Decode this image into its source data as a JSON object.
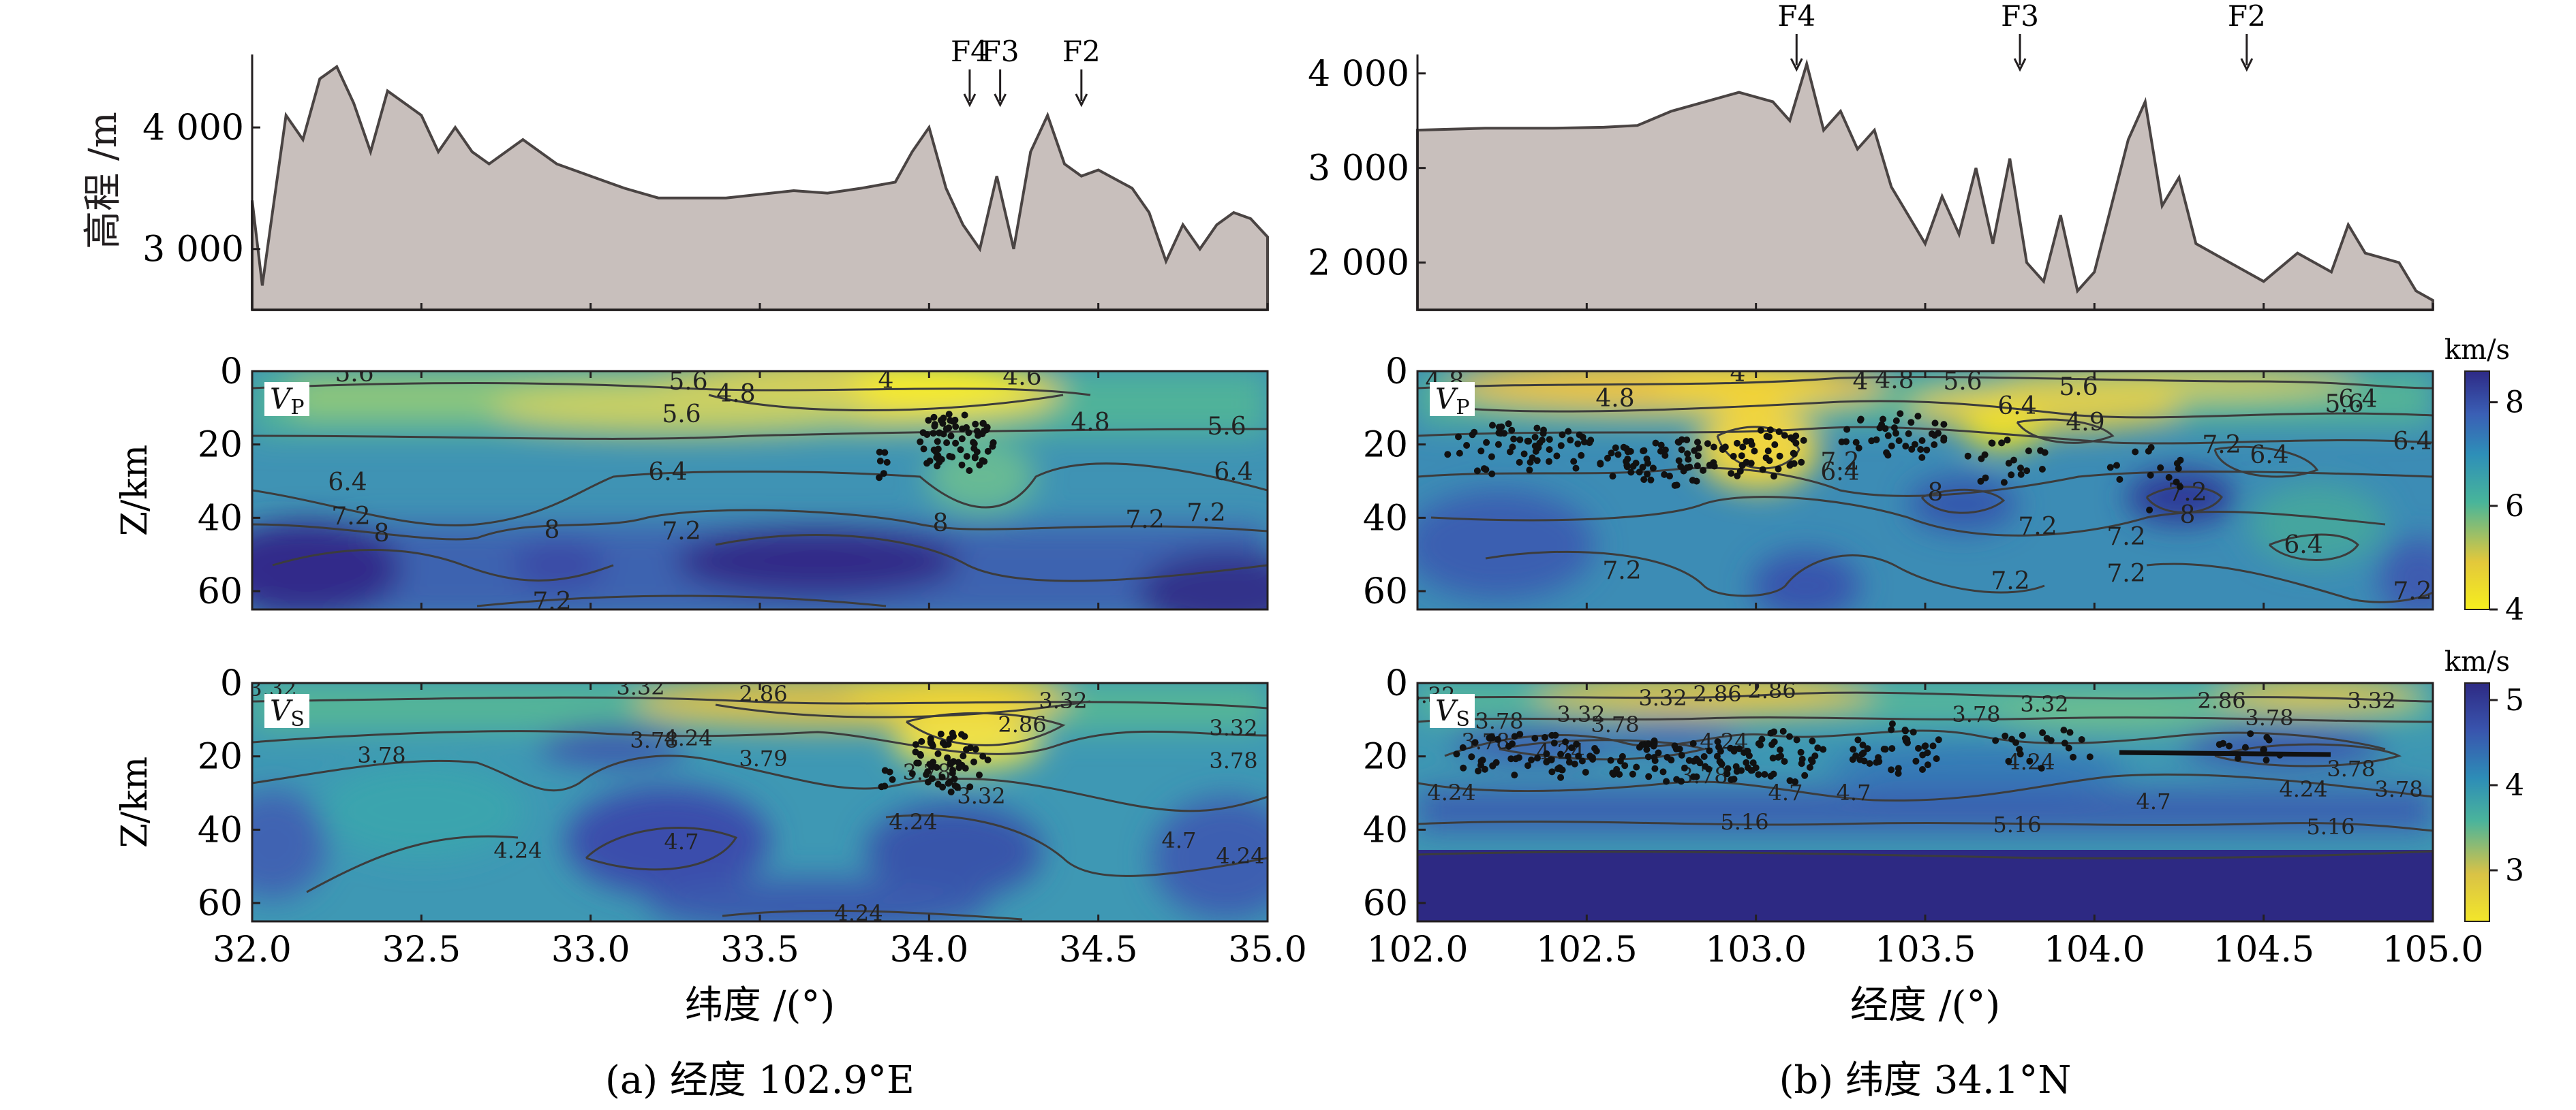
{
  "figure": {
    "colors": {
      "terrain_fill": "#c8bfbc",
      "terrain_line": "#4a4443",
      "contour_line": "#3c3c3c",
      "event_dot": "#111111",
      "vp_colormap": [
        "#f6ee1e",
        "#e3c83b",
        "#48b59a",
        "#2e8fb8",
        "#3a5fb5",
        "#2e2a86"
      ],
      "vs_colormap": [
        "#f3e62a",
        "#d9c246",
        "#4bb49b",
        "#2d8db7",
        "#3955ae",
        "#2e2a84"
      ]
    },
    "panels": [
      {
        "id": "a",
        "caption": "(a) 经度 102.9°E",
        "xlabel": "纬度 /(°)",
        "xlim": [
          32.0,
          35.0
        ],
        "xticks": [
          32.0,
          32.5,
          33.0,
          33.5,
          34.0,
          34.5,
          35.0
        ],
        "xtick_labels": [
          "32.0",
          "32.5",
          "33.0",
          "33.5",
          "34.0",
          "34.5",
          "35.0"
        ],
        "elevation": {
          "ylabel": "高程 /m",
          "ylim": [
            2500,
            4600
          ],
          "yticks": [
            3000,
            4000
          ],
          "ytick_labels": [
            "3 000",
            "4 000"
          ],
          "x": [
            32.0,
            32.03,
            32.06,
            32.1,
            32.15,
            32.2,
            32.25,
            32.3,
            32.35,
            32.4,
            32.45,
            32.5,
            32.55,
            32.6,
            32.65,
            32.7,
            32.8,
            32.9,
            33.0,
            33.1,
            33.2,
            33.3,
            33.4,
            33.5,
            33.6,
            33.7,
            33.8,
            33.9,
            33.95,
            34.0,
            34.05,
            34.1,
            34.15,
            34.2,
            34.25,
            34.3,
            34.35,
            34.4,
            34.45,
            34.5,
            34.6,
            34.65,
            34.7,
            34.75,
            34.8,
            34.85,
            34.9,
            34.95,
            35.0
          ],
          "y": [
            3400,
            2700,
            3300,
            4100,
            3900,
            4400,
            4500,
            4200,
            3800,
            4300,
            4200,
            4100,
            3800,
            4000,
            3800,
            3700,
            3900,
            3700,
            3600,
            3500,
            3420,
            3420,
            3420,
            3450,
            3480,
            3460,
            3500,
            3550,
            3800,
            4000,
            3500,
            3200,
            3000,
            3600,
            3000,
            3800,
            4100,
            3700,
            3600,
            3650,
            3500,
            3300,
            2900,
            3200,
            3000,
            3200,
            3300,
            3250,
            3100
          ],
          "faults": [
            {
              "label": "F4",
              "x": 34.12
            },
            {
              "label": "F3",
              "x": 34.21
            },
            {
              "label": "F2",
              "x": 34.45
            }
          ]
        },
        "vp": {
          "label": "V",
          "label_sub": "P",
          "ylabel": "Z/km",
          "ylim": [
            0,
            65
          ],
          "yticks": [
            0,
            20,
            40,
            60
          ],
          "ytick_labels": [
            "0",
            "20",
            "40",
            "60"
          ],
          "contour_labels": [
            "5.6",
            "5.6",
            "4.8",
            "4",
            "4.6",
            "5.6",
            "4.8",
            "5.6",
            "6.4",
            "7.2",
            "6.4",
            "7.2",
            "8",
            "8",
            "7.2",
            "6.4",
            "7.2",
            "8",
            "7.2"
          ]
        },
        "vs": {
          "label": "V",
          "label_sub": "S",
          "ylabel": "Z/km",
          "ylim": [
            0,
            65
          ],
          "yticks": [
            0,
            20,
            40,
            60
          ],
          "ytick_labels": [
            "0",
            "20",
            "40",
            "60"
          ],
          "contour_labels": [
            "3.32",
            "3.32",
            "2.86",
            "3.78",
            "3.78",
            "3.79",
            "2.86",
            "3.32",
            "3.32",
            "3.78",
            "4.24",
            "4.7",
            "4.24",
            "3.78",
            "3.32",
            "4.24",
            "4.7",
            "4.24",
            "4.24"
          ]
        }
      },
      {
        "id": "b",
        "caption": "(b) 纬度 34.1°N",
        "xlabel": "经度 /(°)",
        "xlim": [
          102.0,
          105.0
        ],
        "xticks": [
          102.0,
          102.5,
          103.0,
          103.5,
          104.0,
          104.5,
          105.0
        ],
        "xtick_labels": [
          "102.0",
          "102.5",
          "103.0",
          "103.5",
          "104.0",
          "104.5",
          "105.0"
        ],
        "elevation": {
          "ylabel": "",
          "ylim": [
            1500,
            4200
          ],
          "yticks": [
            2000,
            3000,
            4000
          ],
          "ytick_labels": [
            "2 000",
            "3 000",
            "4 000"
          ],
          "x": [
            102.0,
            102.2,
            102.4,
            102.55,
            102.65,
            102.75,
            102.85,
            102.95,
            103.05,
            103.1,
            103.15,
            103.2,
            103.25,
            103.3,
            103.35,
            103.4,
            103.45,
            103.5,
            103.55,
            103.6,
            103.65,
            103.7,
            103.75,
            103.8,
            103.85,
            103.9,
            103.95,
            104.0,
            104.05,
            104.1,
            104.15,
            104.2,
            104.25,
            104.3,
            104.4,
            104.5,
            104.6,
            104.7,
            104.75,
            104.8,
            104.9,
            104.95,
            105.0
          ],
          "y": [
            3400,
            3420,
            3420,
            3430,
            3450,
            3600,
            3700,
            3800,
            3700,
            3500,
            4100,
            3400,
            3600,
            3200,
            3400,
            2800,
            2500,
            2200,
            2700,
            2300,
            3000,
            2200,
            3100,
            2000,
            1800,
            2500,
            1700,
            1900,
            2600,
            3300,
            3700,
            2600,
            2900,
            2200,
            2000,
            1800,
            2100,
            1900,
            2400,
            2100,
            2000,
            1700,
            1600
          ],
          "faults": [
            {
              "label": "F4",
              "x": 103.12
            },
            {
              "label": "F3",
              "x": 103.78
            },
            {
              "label": "F2",
              "x": 104.45
            }
          ]
        },
        "vp": {
          "label": "V",
          "label_sub": "P",
          "ylabel": "",
          "ylim": [
            0,
            65
          ],
          "yticks": [
            0,
            20,
            40,
            60
          ],
          "ytick_labels": [
            "0",
            "20",
            "40",
            "60"
          ],
          "contour_labels": [
            "4.8",
            "4",
            "4",
            "4.8",
            "5.6",
            "4.8",
            "5.6",
            "6.4",
            "4.9",
            "6.4",
            "6.4",
            "7.2",
            "6.4",
            "7.2",
            "8",
            "7.2",
            "7.2",
            "7.2",
            "8",
            "7.2",
            "5.6",
            "7.2",
            "6.4",
            "7.2",
            "6.4",
            "7.2"
          ],
          "colorbar": {
            "unit": "km/s",
            "ticks": [
              4,
              6,
              8
            ],
            "tick_labels": [
              "4",
              "6",
              "8"
            ],
            "range": [
              4,
              8.6
            ]
          }
        },
        "vs": {
          "label": "V",
          "label_sub": "S",
          "ylabel": "",
          "ylim": [
            0,
            65
          ],
          "yticks": [
            0,
            20,
            40,
            60
          ],
          "ytick_labels": [
            "0",
            "20",
            "40",
            "60"
          ],
          "contour_labels": [
            "3.32",
            "3.32",
            "2.86",
            "2.86",
            "3.78",
            "3.32",
            "3.78",
            "4.24",
            "3.78",
            "3.78",
            "4.24",
            "3.78",
            "4.24",
            "4.7",
            "3.32",
            "4.24",
            "3.78",
            "3.78",
            "4.7",
            "4.24",
            "5.16",
            "5.16",
            "4.7",
            "5.16",
            "2.86",
            "3.32",
            "3.78"
          ],
          "colorbar": {
            "unit": "km/s",
            "ticks": [
              3,
              4,
              5
            ],
            "tick_labels": [
              "3",
              "4",
              "5"
            ],
            "range": [
              2.4,
              5.2
            ]
          }
        }
      }
    ]
  },
  "chart_data": [
    {
      "type": "area",
      "title": "",
      "xlabel": "纬度 /(°)",
      "ylabel": "高程 /m",
      "xlim": [
        32.0,
        35.0
      ],
      "ylim": [
        2500,
        4600
      ],
      "x": [
        32.0,
        32.1,
        32.2,
        32.3,
        32.5,
        32.7,
        33.0,
        33.2,
        33.5,
        33.9,
        34.0,
        34.1,
        34.2,
        34.35,
        34.5,
        34.7,
        34.9,
        35.0
      ],
      "y": [
        3400,
        4100,
        4400,
        4200,
        4100,
        3700,
        3600,
        3420,
        3450,
        3550,
        4000,
        3200,
        3600,
        4100,
        3650,
        2900,
        3300,
        3100
      ]
    },
    {
      "type": "heatmap",
      "title": "",
      "xlabel": "纬度 /(°)",
      "ylabel": "Z/km",
      "xlim": [
        32.0,
        35.0
      ],
      "ylim": [
        0,
        65
      ],
      "grid": false
    },
    {
      "type": "heatmap",
      "title": "",
      "xlabel": "纬度 /(°)",
      "ylabel": "Z/km",
      "xlim": [
        32.0,
        35.0
      ],
      "ylim": [
        0,
        65
      ],
      "grid": false
    },
    {
      "type": "area",
      "title": "",
      "xlabel": "经度 /(°)",
      "ylabel": "",
      "xlim": [
        102.0,
        105.0
      ],
      "ylim": [
        1500,
        4200
      ],
      "x": [
        102.0,
        102.5,
        102.75,
        103.05,
        103.15,
        103.3,
        103.5,
        103.7,
        103.85,
        104.0,
        104.15,
        104.3,
        104.5,
        104.75,
        105.0
      ],
      "y": [
        3400,
        3420,
        3600,
        3700,
        4100,
        3200,
        2200,
        2200,
        1800,
        1900,
        3700,
        2200,
        1800,
        2400,
        1600
      ]
    },
    {
      "type": "heatmap",
      "title": "",
      "xlabel": "经度 /(°)",
      "ylabel": "",
      "xlim": [
        102.0,
        105.0
      ],
      "ylim": [
        0,
        65
      ],
      "colorbar_unit": "km/s",
      "colorbar_range": [
        4,
        8.6
      ],
      "grid": false
    },
    {
      "type": "heatmap",
      "title": "",
      "xlabel": "经度 /(°)",
      "ylabel": "",
      "xlim": [
        102.0,
        105.0
      ],
      "ylim": [
        0,
        65
      ],
      "colorbar_unit": "km/s",
      "colorbar_range": [
        2.4,
        5.2
      ],
      "grid": false
    }
  ]
}
